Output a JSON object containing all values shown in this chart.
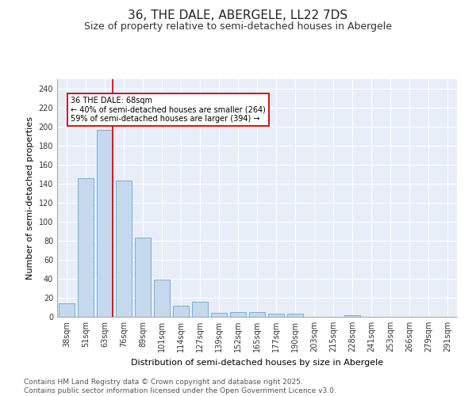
{
  "title": "36, THE DALE, ABERGELE, LL22 7DS",
  "subtitle": "Size of property relative to semi-detached houses in Abergele",
  "xlabel": "Distribution of semi-detached houses by size in Abergele",
  "ylabel": "Number of semi-detached properties",
  "categories": [
    "38sqm",
    "51sqm",
    "63sqm",
    "76sqm",
    "89sqm",
    "101sqm",
    "114sqm",
    "127sqm",
    "139sqm",
    "152sqm",
    "165sqm",
    "177sqm",
    "190sqm",
    "203sqm",
    "215sqm",
    "228sqm",
    "241sqm",
    "253sqm",
    "266sqm",
    "279sqm",
    "291sqm"
  ],
  "values": [
    14,
    146,
    197,
    143,
    83,
    39,
    12,
    16,
    4,
    5,
    5,
    3,
    3,
    0,
    0,
    2,
    0,
    0,
    0,
    0,
    0
  ],
  "bar_color": "#c5d8ee",
  "bar_edge_color": "#7aafd4",
  "highlight_index": 2,
  "highlight_color": "#cc0000",
  "annotation_text": "36 THE DALE: 68sqm\n← 40% of semi-detached houses are smaller (264)\n59% of semi-detached houses are larger (394) →",
  "annotation_box_color": "#ffffff",
  "annotation_box_edge_color": "#cc0000",
  "ylim": [
    0,
    250
  ],
  "yticks": [
    0,
    20,
    40,
    60,
    80,
    100,
    120,
    140,
    160,
    180,
    200,
    220,
    240
  ],
  "background_color": "#e8eef8",
  "footer_text": "Contains HM Land Registry data © Crown copyright and database right 2025.\nContains public sector information licensed under the Open Government Licence v3.0.",
  "title_fontsize": 11,
  "subtitle_fontsize": 9,
  "axis_label_fontsize": 8,
  "tick_fontsize": 7,
  "annotation_fontsize": 7,
  "footer_fontsize": 6.5
}
